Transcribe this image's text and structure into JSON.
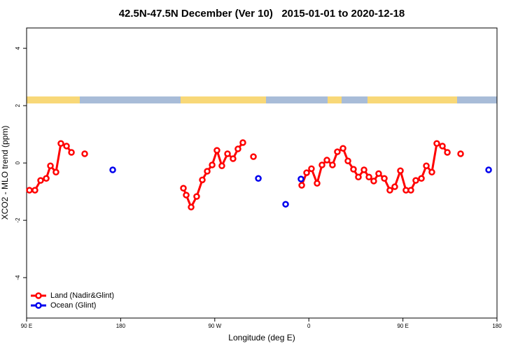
{
  "chart_data": {
    "type": "line",
    "title": "42.5N-47.5N December (Ver 10)   2015-01-01 to 2020-12-18",
    "x_label": "Longitude (deg E)",
    "y_label": "XCO2 - MLO trend (ppm)",
    "xlim": [
      90,
      540
    ],
    "xticks": [
      {
        "value": 90,
        "label": "90 E"
      },
      180,
      {
        "value": 270,
        "label": "90 W"
      },
      {
        "value": 360,
        "label": "0"
      },
      {
        "value": 450,
        "label": "90 E"
      },
      {
        "value": 540,
        "label": "180"
      }
    ],
    "ylim": [
      -5.41,
      4.71
    ],
    "yticks": [
      -4,
      -2,
      0,
      2,
      4
    ],
    "legend": "bottom-left",
    "series": [
      {
        "name": "Land (Nadir&Glint)",
        "color": "#ff0000",
        "show_line": true,
        "x": [
          92.7,
          98.0,
          103.4,
          108.8,
          112.8,
          118.1,
          122.8,
          128.2,
          132.9,
          null,
          145.6,
          null,
          240.0,
          242.7,
          247.4,
          252.7,
          258.1,
          262.8,
          267.5,
          272.1,
          276.8,
          282.2,
          287.5,
          292.2,
          296.9,
          null,
          307.0,
          null,
          353.2,
          357.9,
          362.5,
          367.9,
          372.6,
          377.3,
          382.6,
          387.3,
          392.7,
          397.4,
          402.7,
          407.4,
          412.8,
          417.5,
          422.1,
          426.8,
          432.2,
          437.5,
          442.2,
          447.6,
          452.9,
          457.6,
          462.3,
          467.7,
          472.4,
          477.7,
          482.4,
          487.8,
          492.5,
          null,
          505.2
        ],
        "values": [
          -0.95,
          -0.95,
          -0.61,
          -0.54,
          -0.1,
          -0.32,
          0.68,
          0.59,
          0.37,
          null,
          0.32,
          null,
          -0.88,
          -1.12,
          -1.54,
          -1.17,
          -0.59,
          -0.29,
          -0.07,
          0.44,
          -0.1,
          0.32,
          0.15,
          0.49,
          0.71,
          null,
          0.22,
          null,
          -0.78,
          -0.34,
          -0.2,
          -0.71,
          -0.07,
          0.1,
          -0.07,
          0.39,
          0.51,
          0.07,
          -0.22,
          -0.49,
          -0.24,
          -0.49,
          -0.63,
          -0.37,
          -0.54,
          -0.95,
          -0.83,
          -0.27,
          -0.95,
          -0.95,
          -0.61,
          -0.54,
          -0.1,
          -0.32,
          0.68,
          0.59,
          0.37,
          null,
          0.32
        ]
      },
      {
        "name": "Ocean (Glint)",
        "color": "#0000ee",
        "show_line": false,
        "x": [
          172.4,
          311.7,
          337.8,
          352.5,
          532.0
        ],
        "values": [
          -0.24,
          -0.54,
          -1.44,
          -0.56,
          -0.24
        ]
      }
    ]
  }
}
